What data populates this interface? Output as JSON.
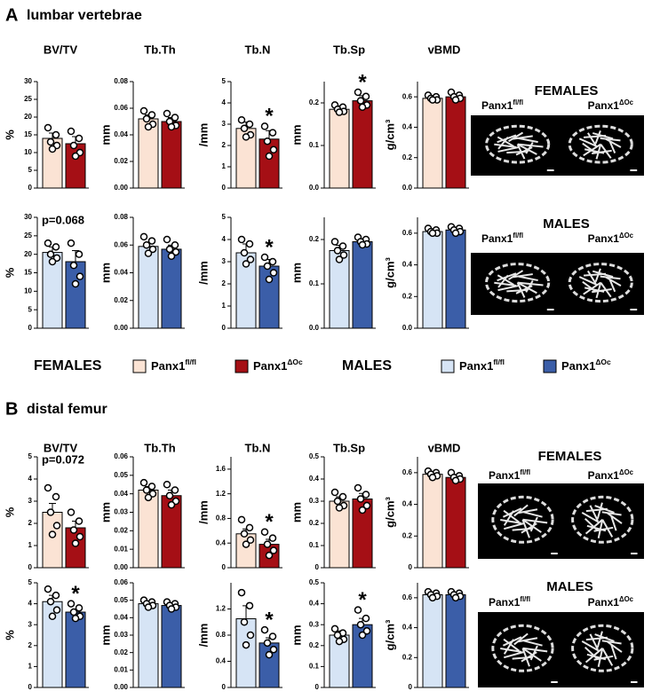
{
  "panels": [
    {
      "label": "A",
      "title": "lumbar vertebrae",
      "columns": [
        "BV/TV",
        "Tb.Th",
        "Tb.N",
        "Tb.Sp",
        "vBMD"
      ]
    },
    {
      "label": "B",
      "title": "distal femur",
      "columns": [
        "BV/TV",
        "Tb.Th",
        "Tb.N",
        "Tb.Sp",
        "vBMD"
      ]
    }
  ],
  "legend": [
    {
      "label": "FEMALES",
      "entries": [
        {
          "base": "Panx1",
          "sup": "fl/fl",
          "color": "#fbe3d4"
        },
        {
          "base": "Panx1",
          "sup": "ΔOc",
          "color": "#a50f15"
        }
      ]
    },
    {
      "label": "MALES",
      "entries": [
        {
          "base": "Panx1",
          "sup": "fl/fl",
          "color": "#d6e4f5"
        },
        {
          "base": "Panx1",
          "sup": "ΔOc",
          "color": "#3b5ea8"
        }
      ]
    }
  ],
  "images": [
    {
      "title": "FEMALES",
      "left": {
        "base": "Panx1",
        "sup": "fl/fl"
      },
      "right": {
        "base": "Panx1",
        "sup": "ΔOc"
      }
    },
    {
      "title": "MALES",
      "left": {
        "base": "Panx1",
        "sup": "fl/fl"
      },
      "right": {
        "base": "Panx1",
        "sup": "ΔOc"
      }
    },
    {
      "title": "FEMALES",
      "left": {
        "base": "Panx1",
        "sup": "fl/fl"
      },
      "right": {
        "base": "Panx1",
        "sup": "ΔOc"
      }
    },
    {
      "title": "MALES",
      "left": {
        "base": "Panx1",
        "sup": "fl/fl"
      },
      "right": {
        "base": "Panx1",
        "sup": "ΔOc"
      }
    }
  ],
  "chart_data": [
    {
      "type": "bar",
      "ylabel": "%",
      "ylim": [
        0,
        30
      ],
      "yticks": [
        0,
        5,
        10,
        15,
        20,
        25,
        30
      ],
      "series": [
        {
          "color": "#fbe3d4",
          "values": [
            14
          ],
          "errors": [
            1.5
          ],
          "points": [
            17,
            15,
            13,
            12,
            11
          ]
        },
        {
          "color": "#a50f15",
          "values": [
            12.5
          ],
          "errors": [
            2
          ],
          "points": [
            16,
            14,
            12,
            10,
            9
          ]
        }
      ]
    },
    {
      "type": "bar",
      "ylabel": "mm",
      "ylim": [
        0,
        0.08
      ],
      "yticks": [
        {
          "value": 0,
          "label": "0.00"
        },
        0.02,
        0.04,
        0.06,
        0.08
      ],
      "series": [
        {
          "color": "#fbe3d4",
          "values": [
            0.052
          ],
          "errors": [
            0.003
          ],
          "points": [
            0.058,
            0.055,
            0.052,
            0.048,
            0.046
          ]
        },
        {
          "color": "#a50f15",
          "values": [
            0.05
          ],
          "errors": [
            0.003
          ],
          "points": [
            0.056,
            0.053,
            0.05,
            0.047,
            0.046
          ]
        }
      ]
    },
    {
      "type": "bar",
      "ylabel": "/mm",
      "ylim": [
        0,
        5
      ],
      "yticks": [
        0,
        1,
        2,
        3,
        4,
        5
      ],
      "series": [
        {
          "color": "#fbe3d4",
          "values": [
            2.8
          ],
          "errors": [
            0.3
          ],
          "points": [
            3.2,
            3,
            2.8,
            2.5,
            2.4
          ]
        },
        {
          "color": "#a50f15",
          "values": [
            2.3
          ],
          "errors": [
            0.4
          ],
          "points": [
            2.9,
            2.6,
            2.2,
            1.8,
            1.5
          ]
        }
      ],
      "annotations": [
        {
          "text": "*",
          "series": 1
        }
      ]
    },
    {
      "type": "bar",
      "ylabel": "mm",
      "ylim": [
        0,
        0.25
      ],
      "yticks": [
        {
          "value": 0,
          "label": "0.0"
        },
        0.1,
        0.2
      ],
      "series": [
        {
          "color": "#fbe3d4",
          "values": [
            0.185
          ],
          "errors": [
            0.008
          ],
          "points": [
            0.195,
            0.19,
            0.185,
            0.18,
            0.178
          ]
        },
        {
          "color": "#a50f15",
          "values": [
            0.205
          ],
          "errors": [
            0.012
          ],
          "points": [
            0.225,
            0.215,
            0.205,
            0.195,
            0.19
          ]
        }
      ],
      "annotations": [
        {
          "text": "*",
          "series": 1
        }
      ]
    },
    {
      "type": "bar",
      "ylabel": "g/cm³",
      "ylim": [
        0,
        0.7
      ],
      "yticks": [
        {
          "value": 0,
          "label": "0.0"
        },
        0.2,
        0.4,
        0.6
      ],
      "series": [
        {
          "color": "#fbe3d4",
          "values": [
            0.59
          ],
          "errors": [
            0.01
          ],
          "points": [
            0.61,
            0.6,
            0.59,
            0.58,
            0.58
          ]
        },
        {
          "color": "#a50f15",
          "values": [
            0.6
          ],
          "errors": [
            0.015
          ],
          "points": [
            0.63,
            0.61,
            0.6,
            0.59,
            0.58
          ]
        }
      ]
    },
    {
      "type": "bar",
      "ylabel": "%",
      "ylim": [
        0,
        30
      ],
      "yticks": [
        0,
        5,
        10,
        15,
        20,
        25,
        30
      ],
      "series": [
        {
          "color": "#d6e4f5",
          "values": [
            20.5
          ],
          "errors": [
            1.5
          ],
          "points": [
            23,
            22,
            20,
            19,
            18
          ]
        },
        {
          "color": "#3b5ea8",
          "values": [
            18
          ],
          "errors": [
            3
          ],
          "points": [
            23,
            20,
            17,
            14,
            12
          ]
        }
      ],
      "annotations": [
        {
          "text": "p=0.068",
          "series": -1
        }
      ]
    },
    {
      "type": "bar",
      "ylabel": "mm",
      "ylim": [
        0,
        0.08
      ],
      "yticks": [
        {
          "value": 0,
          "label": "0.00"
        },
        0.02,
        0.04,
        0.06,
        0.08
      ],
      "series": [
        {
          "color": "#d6e4f5",
          "values": [
            0.059
          ],
          "errors": [
            0.003
          ],
          "points": [
            0.066,
            0.063,
            0.06,
            0.057,
            0.054
          ]
        },
        {
          "color": "#3b5ea8",
          "values": [
            0.057
          ],
          "errors": [
            0.003
          ],
          "points": [
            0.064,
            0.06,
            0.057,
            0.055,
            0.052
          ]
        }
      ]
    },
    {
      "type": "bar",
      "ylabel": "/mm",
      "ylim": [
        0,
        5
      ],
      "yticks": [
        0,
        1,
        2,
        3,
        4,
        5
      ],
      "series": [
        {
          "color": "#d6e4f5",
          "values": [
            3.4
          ],
          "errors": [
            0.4
          ],
          "points": [
            4,
            3.8,
            3.4,
            3.1,
            2.9
          ]
        },
        {
          "color": "#3b5ea8",
          "values": [
            2.8
          ],
          "errors": [
            0.3
          ],
          "points": [
            3.2,
            3,
            2.8,
            2.5,
            2.2
          ]
        }
      ],
      "annotations": [
        {
          "text": "*",
          "series": 1
        }
      ]
    },
    {
      "type": "bar",
      "ylabel": "mm",
      "ylim": [
        0,
        0.25
      ],
      "yticks": [
        {
          "value": 0,
          "label": "0.0"
        },
        0.1,
        0.2
      ],
      "series": [
        {
          "color": "#d6e4f5",
          "values": [
            0.175
          ],
          "errors": [
            0.012
          ],
          "points": [
            0.195,
            0.185,
            0.175,
            0.165,
            0.155
          ]
        },
        {
          "color": "#3b5ea8",
          "values": [
            0.195
          ],
          "errors": [
            0.006
          ],
          "points": [
            0.205,
            0.2,
            0.195,
            0.19,
            0.188
          ]
        }
      ]
    },
    {
      "type": "bar",
      "ylabel": "g/cm³",
      "ylim": [
        0,
        0.7
      ],
      "yticks": [
        {
          "value": 0,
          "label": "0.0"
        },
        0.2,
        0.4,
        0.6
      ],
      "series": [
        {
          "color": "#d6e4f5",
          "values": [
            0.61
          ],
          "errors": [
            0.01
          ],
          "points": [
            0.63,
            0.62,
            0.61,
            0.6,
            0.6
          ]
        },
        {
          "color": "#3b5ea8",
          "values": [
            0.62
          ],
          "errors": [
            0.01
          ],
          "points": [
            0.64,
            0.63,
            0.62,
            0.61,
            0.6
          ]
        }
      ]
    },
    {
      "type": "bar",
      "ylabel": "%",
      "ylim": [
        0,
        5
      ],
      "yticks": [
        0,
        1,
        2,
        3,
        4,
        5
      ],
      "series": [
        {
          "color": "#fbe3d4",
          "values": [
            2.5
          ],
          "errors": [
            0.4
          ],
          "points": [
            3.6,
            3.2,
            2.5,
            1.9,
            1.5
          ]
        },
        {
          "color": "#a50f15",
          "values": [
            1.8
          ],
          "errors": [
            0.3
          ],
          "points": [
            2.5,
            2.1,
            1.7,
            1.4,
            1.1
          ]
        }
      ],
      "annotations": [
        {
          "text": "p=0.072",
          "series": -1
        }
      ]
    },
    {
      "type": "bar",
      "ylabel": "mm",
      "ylim": [
        0,
        0.06
      ],
      "yticks": [
        {
          "value": 0,
          "label": "0.00"
        },
        {
          "value": 0.01,
          "label": "0.01"
        },
        {
          "value": 0.02,
          "label": "0.02"
        },
        {
          "value": 0.03,
          "label": "0.03"
        },
        {
          "value": 0.04,
          "label": "0.04"
        },
        {
          "value": 0.05,
          "label": "0.05"
        },
        {
          "value": 0.06,
          "label": "0.06"
        }
      ],
      "series": [
        {
          "color": "#fbe3d4",
          "values": [
            0.042
          ],
          "errors": [
            0.002
          ],
          "points": [
            0.046,
            0.044,
            0.042,
            0.04,
            0.038
          ]
        },
        {
          "color": "#a50f15",
          "values": [
            0.039
          ],
          "errors": [
            0.003
          ],
          "points": [
            0.045,
            0.042,
            0.039,
            0.036,
            0.034
          ]
        }
      ]
    },
    {
      "type": "bar",
      "ylabel": "/mm",
      "ylim": [
        0,
        1.8
      ],
      "yticks": [
        0,
        0.4,
        0.8,
        1.2,
        1.6
      ],
      "series": [
        {
          "color": "#fbe3d4",
          "values": [
            0.55
          ],
          "errors": [
            0.08
          ],
          "points": [
            0.78,
            0.65,
            0.55,
            0.45,
            0.38
          ]
        },
        {
          "color": "#a50f15",
          "values": [
            0.38
          ],
          "errors": [
            0.08
          ],
          "points": [
            0.58,
            0.48,
            0.38,
            0.28,
            0.2
          ]
        }
      ],
      "annotations": [
        {
          "text": "*",
          "series": 1
        }
      ]
    },
    {
      "type": "bar",
      "ylabel": "mm",
      "ylim": [
        0,
        0.5
      ],
      "yticks": [
        0,
        0.1,
        0.2,
        0.3,
        0.4,
        0.5
      ],
      "series": [
        {
          "color": "#fbe3d4",
          "values": [
            0.3
          ],
          "errors": [
            0.02
          ],
          "points": [
            0.34,
            0.32,
            0.3,
            0.28,
            0.27
          ]
        },
        {
          "color": "#a50f15",
          "values": [
            0.31
          ],
          "errors": [
            0.025
          ],
          "points": [
            0.36,
            0.33,
            0.31,
            0.28,
            0.26
          ]
        }
      ]
    },
    {
      "type": "bar",
      "ylabel": "g/cm³",
      "ylim": [
        0,
        0.7
      ],
      "yticks": [
        0,
        0.2,
        0.4,
        0.6
      ],
      "series": [
        {
          "color": "#fbe3d4",
          "values": [
            0.59
          ],
          "errors": [
            0.01
          ],
          "points": [
            0.61,
            0.6,
            0.59,
            0.58,
            0.57
          ]
        },
        {
          "color": "#a50f15",
          "values": [
            0.57
          ],
          "errors": [
            0.01
          ],
          "points": [
            0.6,
            0.58,
            0.57,
            0.56,
            0.55
          ]
        }
      ]
    },
    {
      "type": "bar",
      "ylabel": "%",
      "ylim": [
        0,
        5
      ],
      "yticks": [
        0,
        1,
        2,
        3,
        4,
        5
      ],
      "series": [
        {
          "color": "#d6e4f5",
          "values": [
            4.1
          ],
          "errors": [
            0.3
          ],
          "points": [
            4.7,
            4.4,
            4.1,
            3.7,
            3.4
          ]
        },
        {
          "color": "#3b5ea8",
          "values": [
            3.6
          ],
          "errors": [
            0.15
          ],
          "points": [
            4,
            3.8,
            3.6,
            3.4,
            3.3
          ]
        }
      ],
      "annotations": [
        {
          "text": "*",
          "series": 1
        }
      ]
    },
    {
      "type": "bar",
      "ylabel": "mm",
      "ylim": [
        0,
        0.06
      ],
      "yticks": [
        {
          "value": 0,
          "label": "0.00"
        },
        {
          "value": 0.01,
          "label": "0.01"
        },
        {
          "value": 0.02,
          "label": "0.02"
        },
        {
          "value": 0.03,
          "label": "0.03"
        },
        {
          "value": 0.04,
          "label": "0.04"
        },
        {
          "value": 0.05,
          "label": "0.05"
        },
        {
          "value": 0.06,
          "label": "0.06"
        }
      ],
      "series": [
        {
          "color": "#d6e4f5",
          "values": [
            0.048
          ],
          "errors": [
            0.001
          ],
          "points": [
            0.05,
            0.049,
            0.048,
            0.047,
            0.046
          ]
        },
        {
          "color": "#3b5ea8",
          "values": [
            0.047
          ],
          "errors": [
            0.001
          ],
          "points": [
            0.049,
            0.048,
            0.047,
            0.046,
            0.045
          ]
        }
      ]
    },
    {
      "type": "bar",
      "ylabel": "/mm",
      "ylim": [
        0,
        1.6
      ],
      "yticks": [
        0,
        0.4,
        0.8,
        1.2
      ],
      "series": [
        {
          "color": "#d6e4f5",
          "values": [
            1.05
          ],
          "errors": [
            0.2
          ],
          "points": [
            1.45,
            1.25,
            1,
            0.8,
            0.65
          ]
        },
        {
          "color": "#3b5ea8",
          "values": [
            0.68
          ],
          "errors": [
            0.08
          ],
          "points": [
            0.88,
            0.78,
            0.68,
            0.58,
            0.5
          ]
        }
      ],
      "annotations": [
        {
          "text": "*",
          "series": 1
        }
      ]
    },
    {
      "type": "bar",
      "ylabel": "mm",
      "ylim": [
        0,
        0.5
      ],
      "yticks": [
        0,
        0.1,
        0.2,
        0.3,
        0.4,
        0.5
      ],
      "series": [
        {
          "color": "#d6e4f5",
          "values": [
            0.25
          ],
          "errors": [
            0.02
          ],
          "points": [
            0.28,
            0.26,
            0.25,
            0.23,
            0.22
          ]
        },
        {
          "color": "#3b5ea8",
          "values": [
            0.3
          ],
          "errors": [
            0.03
          ],
          "points": [
            0.37,
            0.33,
            0.3,
            0.27,
            0.25
          ]
        }
      ],
      "annotations": [
        {
          "text": "*",
          "series": 1
        }
      ]
    },
    {
      "type": "bar",
      "ylabel": "g/cm³",
      "ylim": [
        0,
        0.7
      ],
      "yticks": [
        0,
        0.2,
        0.4,
        0.6
      ],
      "series": [
        {
          "color": "#d6e4f5",
          "values": [
            0.62
          ],
          "errors": [
            0.01
          ],
          "points": [
            0.64,
            0.63,
            0.62,
            0.61,
            0.6
          ]
        },
        {
          "color": "#3b5ea8",
          "values": [
            0.62
          ],
          "errors": [
            0.01
          ],
          "points": [
            0.64,
            0.63,
            0.62,
            0.61,
            0.6
          ]
        }
      ]
    }
  ]
}
